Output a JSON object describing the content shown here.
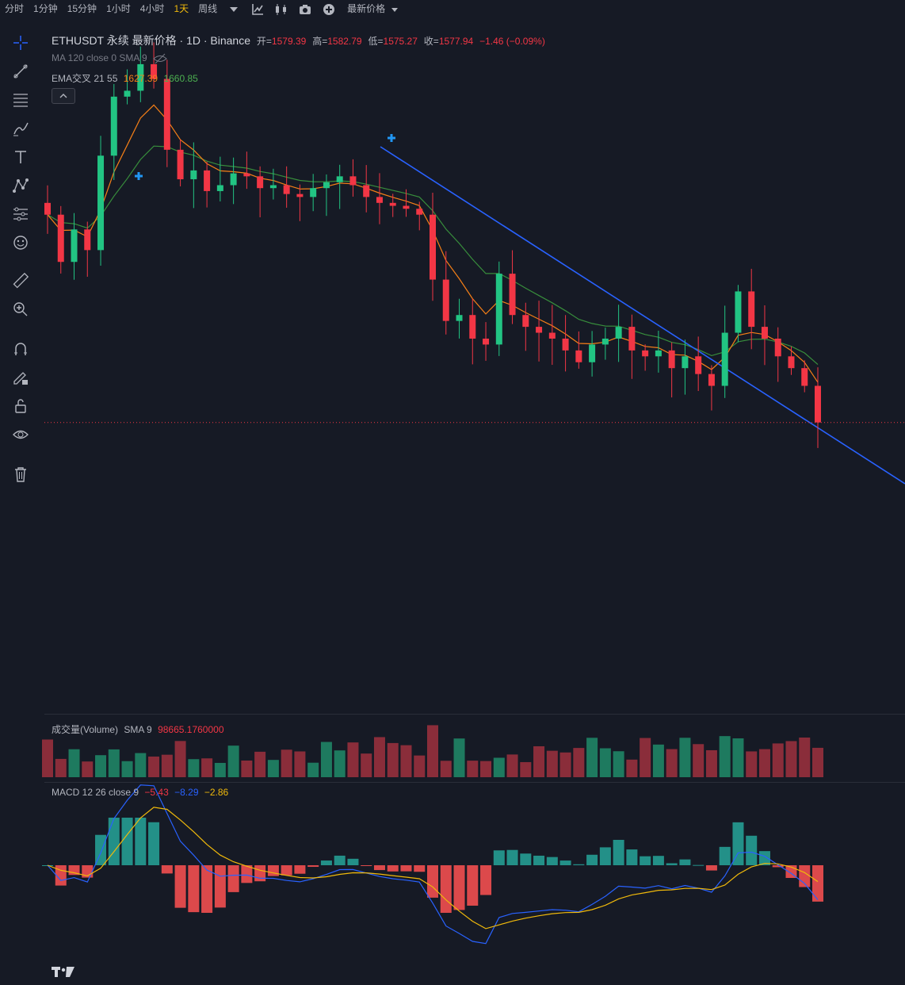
{
  "toolbar": {
    "timeframes": [
      "分时",
      "1分钟",
      "15分钟",
      "1小时",
      "4小时",
      "1天",
      "周线"
    ],
    "active_timeframe": "1天",
    "price_source_label": "最新价格",
    "icons": [
      "chevron-down-icon",
      "indicator-icon",
      "candle-type-icon",
      "camera-icon",
      "plus-circle-icon"
    ]
  },
  "left_tools": [
    "crosshair-icon",
    "trendline-icon",
    "fib-icon",
    "brush-icon",
    "text-icon",
    "pattern-icon",
    "measure-icon",
    "emoji-icon",
    "ruler-icon",
    "zoom-icon",
    "magnet-icon",
    "lock-draw-icon",
    "lock-icon",
    "eye-icon",
    "trash-icon"
  ],
  "legend": {
    "symbol": "ETHUSDT 永续 最新价格 · 1D · Binance",
    "open_label": "开=",
    "open": "1579.39",
    "high_label": "高=",
    "high": "1582.79",
    "low_label": "低=",
    "low": "1575.27",
    "close_label": "收=",
    "close": "1577.94",
    "change": "−1.46 (−0.09%)",
    "ma_line": "MA 120 close 0 SMA 9",
    "ema_label": "EMA交叉 21 55",
    "ema_fast": "1627.39",
    "ema_slow": "1660.85"
  },
  "volume": {
    "label": "成交量(Volume)",
    "sma_label": "SMA 9",
    "sma_value": "98665.1760000"
  },
  "macd": {
    "label": "MACD 12 26 close 9",
    "hist": "−5.43",
    "macd": "−8.29",
    "signal": "−2.86"
  },
  "colors": {
    "up": "#26a69a",
    "up_bright": "#22c483",
    "down": "#f23645",
    "ema_fast": "#f57f17",
    "ema_slow": "#388e3c",
    "trendline": "#2962ff",
    "active": "#f0b90b"
  },
  "chart_data": {
    "type": "candlestick",
    "symbol": "ETHUSDT",
    "interval": "1D",
    "candle_closes_approx": [
      1930,
      1850,
      1905,
      1870,
      2030,
      2130,
      2140,
      2185,
      2160,
      2040,
      1990,
      2005,
      1970,
      1980,
      2000,
      1995,
      1975,
      1980,
      1965,
      1960,
      1975,
      1985,
      1995,
      1980,
      1960,
      1950,
      1945,
      1940,
      1930,
      1820,
      1750,
      1760,
      1720,
      1710,
      1830,
      1760,
      1740,
      1730,
      1720,
      1700,
      1680,
      1710,
      1720,
      1740,
      1700,
      1690,
      1700,
      1670,
      1690,
      1660,
      1640,
      1730,
      1800,
      1740,
      1720,
      1690,
      1670,
      1640,
      1578
    ],
    "ema_fast_last": 1627.39,
    "ema_slow_last": 1660.85,
    "last_price": 1577.94
  }
}
